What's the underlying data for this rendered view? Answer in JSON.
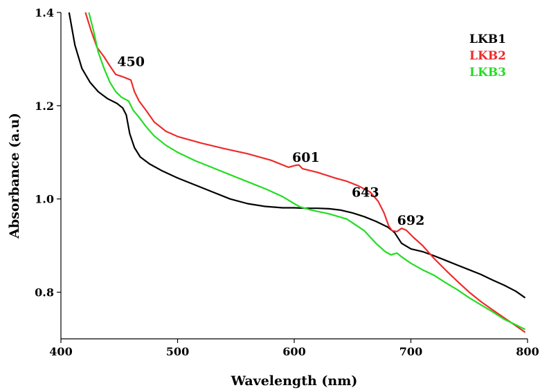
{
  "chart_data": {
    "type": "line",
    "title": "",
    "xlabel": "Wavelength (nm)",
    "ylabel": "Absorbance (a.u)",
    "xlim": [
      400,
      800
    ],
    "ylim": [
      0.7,
      1.4
    ],
    "x_ticks": [
      "400",
      "500",
      "600",
      "700",
      "800"
    ],
    "y_ticks": [
      "0.8",
      "1.0",
      "1.2",
      "1.4"
    ],
    "grid": false,
    "legend_position": "top-right",
    "series": [
      {
        "name": "LKB1",
        "color": "#000000",
        "points": [
          [
            407,
            1.4
          ],
          [
            412,
            1.33
          ],
          [
            418,
            1.28
          ],
          [
            425,
            1.25
          ],
          [
            432,
            1.23
          ],
          [
            440,
            1.215
          ],
          [
            448,
            1.205
          ],
          [
            453,
            1.195
          ],
          [
            456,
            1.18
          ],
          [
            459,
            1.14
          ],
          [
            463,
            1.11
          ],
          [
            468,
            1.09
          ],
          [
            476,
            1.075
          ],
          [
            487,
            1.06
          ],
          [
            500,
            1.045
          ],
          [
            515,
            1.03
          ],
          [
            530,
            1.015
          ],
          [
            545,
            1.0
          ],
          [
            560,
            0.99
          ],
          [
            575,
            0.984
          ],
          [
            590,
            0.981
          ],
          [
            600,
            0.981
          ],
          [
            610,
            0.98
          ],
          [
            620,
            0.98
          ],
          [
            630,
            0.979
          ],
          [
            640,
            0.976
          ],
          [
            650,
            0.97
          ],
          [
            660,
            0.962
          ],
          [
            670,
            0.952
          ],
          [
            680,
            0.94
          ],
          [
            686,
            0.928
          ],
          [
            692,
            0.905
          ],
          [
            700,
            0.893
          ],
          [
            710,
            0.887
          ],
          [
            720,
            0.878
          ],
          [
            730,
            0.868
          ],
          [
            740,
            0.858
          ],
          [
            750,
            0.848
          ],
          [
            760,
            0.838
          ],
          [
            770,
            0.826
          ],
          [
            780,
            0.815
          ],
          [
            790,
            0.802
          ],
          [
            798,
            0.788
          ]
        ]
      },
      {
        "name": "LKB2",
        "color": "#ee2b2b",
        "points": [
          [
            421,
            1.4
          ],
          [
            426,
            1.36
          ],
          [
            431,
            1.325
          ],
          [
            437,
            1.305
          ],
          [
            442,
            1.285
          ],
          [
            447,
            1.267
          ],
          [
            452,
            1.263
          ],
          [
            457,
            1.258
          ],
          [
            460,
            1.255
          ],
          [
            463,
            1.23
          ],
          [
            467,
            1.21
          ],
          [
            473,
            1.19
          ],
          [
            480,
            1.165
          ],
          [
            490,
            1.145
          ],
          [
            500,
            1.134
          ],
          [
            520,
            1.12
          ],
          [
            540,
            1.108
          ],
          [
            560,
            1.097
          ],
          [
            580,
            1.083
          ],
          [
            595,
            1.068
          ],
          [
            601,
            1.072
          ],
          [
            604,
            1.073
          ],
          [
            607,
            1.065
          ],
          [
            620,
            1.057
          ],
          [
            635,
            1.045
          ],
          [
            645,
            1.038
          ],
          [
            655,
            1.028
          ],
          [
            665,
            1.015
          ],
          [
            672,
            0.995
          ],
          [
            677,
            0.97
          ],
          [
            681,
            0.942
          ],
          [
            684,
            0.932
          ],
          [
            688,
            0.93
          ],
          [
            692,
            0.937
          ],
          [
            696,
            0.933
          ],
          [
            702,
            0.918
          ],
          [
            710,
            0.9
          ],
          [
            720,
            0.872
          ],
          [
            730,
            0.847
          ],
          [
            740,
            0.823
          ],
          [
            750,
            0.8
          ],
          [
            760,
            0.78
          ],
          [
            770,
            0.762
          ],
          [
            780,
            0.745
          ],
          [
            790,
            0.728
          ],
          [
            798,
            0.714
          ]
        ]
      },
      {
        "name": "LKB3",
        "color": "#22dd22",
        "points": [
          [
            424,
            1.4
          ],
          [
            428,
            1.36
          ],
          [
            432,
            1.315
          ],
          [
            437,
            1.28
          ],
          [
            442,
            1.25
          ],
          [
            447,
            1.23
          ],
          [
            452,
            1.218
          ],
          [
            458,
            1.21
          ],
          [
            462,
            1.19
          ],
          [
            467,
            1.175
          ],
          [
            473,
            1.155
          ],
          [
            480,
            1.135
          ],
          [
            490,
            1.115
          ],
          [
            500,
            1.1
          ],
          [
            515,
            1.082
          ],
          [
            530,
            1.067
          ],
          [
            545,
            1.052
          ],
          [
            560,
            1.037
          ],
          [
            575,
            1.022
          ],
          [
            590,
            1.005
          ],
          [
            600,
            0.99
          ],
          [
            605,
            0.983
          ],
          [
            615,
            0.976
          ],
          [
            630,
            0.968
          ],
          [
            645,
            0.957
          ],
          [
            660,
            0.932
          ],
          [
            670,
            0.905
          ],
          [
            678,
            0.887
          ],
          [
            683,
            0.88
          ],
          [
            688,
            0.884
          ],
          [
            692,
            0.876
          ],
          [
            700,
            0.862
          ],
          [
            710,
            0.848
          ],
          [
            720,
            0.836
          ],
          [
            730,
            0.82
          ],
          [
            740,
            0.805
          ],
          [
            750,
            0.788
          ],
          [
            760,
            0.773
          ],
          [
            770,
            0.758
          ],
          [
            780,
            0.742
          ],
          [
            790,
            0.73
          ],
          [
            798,
            0.72
          ]
        ]
      }
    ],
    "annotations": [
      {
        "text": "450",
        "x": 460,
        "y": 1.285
      },
      {
        "text": "601",
        "x": 610,
        "y": 1.08
      },
      {
        "text": "643",
        "x": 661,
        "y": 1.005
      },
      {
        "text": "692",
        "x": 700,
        "y": 0.945
      }
    ]
  }
}
